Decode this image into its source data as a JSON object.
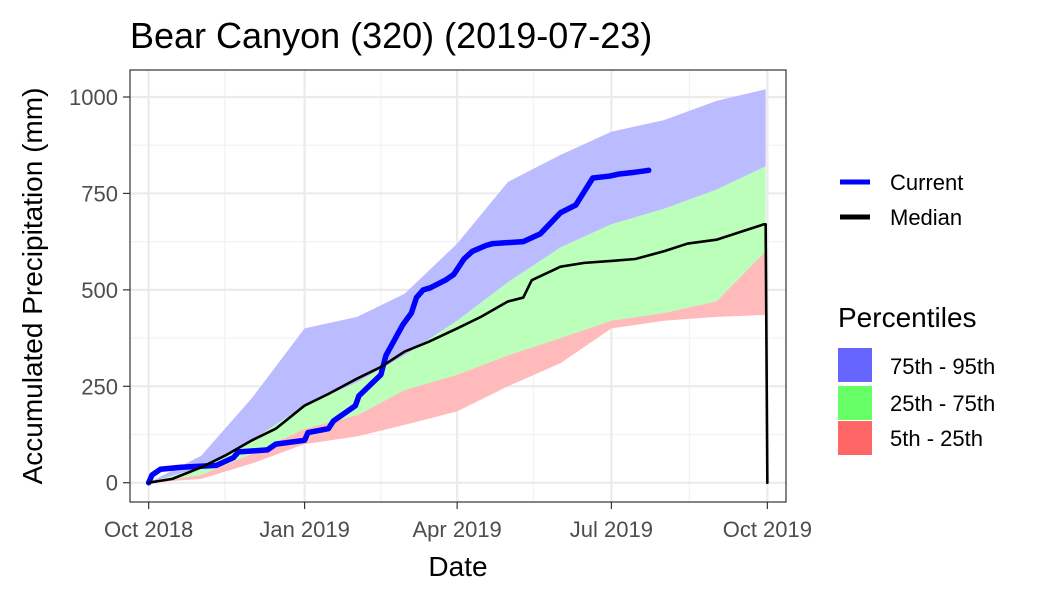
{
  "chart_data": {
    "type": "area",
    "title": "Bear Canyon (320) (2019-07-23)",
    "xlabel": "Date",
    "ylabel": "Accumulated Precipitation (mm)",
    "xlim": [
      "2018-09-20",
      "2019-10-12"
    ],
    "ylim": [
      -50,
      1070
    ],
    "grid": true,
    "x_ticks": [
      {
        "date": "2018-10-01",
        "label": "Oct 2018"
      },
      {
        "date": "2019-01-01",
        "label": "Jan 2019"
      },
      {
        "date": "2019-04-01",
        "label": "Apr 2019"
      },
      {
        "date": "2019-07-01",
        "label": "Jul 2019"
      },
      {
        "date": "2019-10-01",
        "label": "Oct 2019"
      }
    ],
    "y_ticks": [
      0,
      250,
      500,
      750,
      1000
    ],
    "x_minor_ticks": [
      "2018-11-15",
      "2019-02-15",
      "2019-05-16",
      "2019-08-16"
    ],
    "y_minor_ticks": [
      125,
      375,
      625,
      875
    ],
    "bands_dates": [
      "2018-10-01",
      "2018-11-01",
      "2018-12-01",
      "2019-01-01",
      "2019-02-01",
      "2019-03-01",
      "2019-04-01",
      "2019-05-01",
      "2019-06-01",
      "2019-07-01",
      "2019-08-01",
      "2019-09-01",
      "2019-09-30"
    ],
    "bands": [
      {
        "name": "75th - 95th",
        "color": "#6666ff",
        "fill": "#bbbbff",
        "lower": [
          0,
          40,
          110,
          200,
          260,
          330,
          420,
          520,
          610,
          670,
          710,
          760,
          820
        ],
        "upper": [
          0,
          70,
          220,
          400,
          430,
          490,
          620,
          780,
          850,
          910,
          940,
          990,
          1020
        ]
      },
      {
        "name": "25th - 75th",
        "color": "#66ff66",
        "fill": "#bbffbb",
        "lower": [
          0,
          20,
          75,
          140,
          175,
          240,
          280,
          330,
          375,
          420,
          440,
          470,
          600
        ],
        "upper": [
          0,
          40,
          110,
          200,
          260,
          330,
          420,
          520,
          610,
          670,
          710,
          760,
          820
        ]
      },
      {
        "name": "5th - 25th",
        "color": "#ff6666",
        "fill": "#ffbbbb",
        "lower": [
          0,
          10,
          50,
          100,
          120,
          150,
          185,
          250,
          310,
          400,
          420,
          430,
          435
        ],
        "upper": [
          0,
          20,
          75,
          140,
          175,
          240,
          280,
          330,
          375,
          420,
          440,
          470,
          600
        ]
      }
    ],
    "series": [
      {
        "name": "Current",
        "color": "#0000ff",
        "dates": [
          "2018-10-01",
          "2018-10-03",
          "2018-10-08",
          "2018-10-20",
          "2018-11-10",
          "2018-11-20",
          "2018-11-23",
          "2018-12-10",
          "2018-12-15",
          "2019-01-01",
          "2019-01-03",
          "2019-01-15",
          "2019-01-18",
          "2019-01-31",
          "2019-02-02",
          "2019-02-15",
          "2019-02-18",
          "2019-02-28",
          "2019-03-05",
          "2019-03-08",
          "2019-03-12",
          "2019-03-16",
          "2019-03-25",
          "2019-03-30",
          "2019-04-05",
          "2019-04-10",
          "2019-04-18",
          "2019-04-22",
          "2019-05-10",
          "2019-05-20",
          "2019-06-01",
          "2019-06-10",
          "2019-06-20",
          "2019-06-30",
          "2019-07-05",
          "2019-07-15",
          "2019-07-23"
        ],
        "values": [
          0,
          20,
          35,
          40,
          45,
          65,
          80,
          85,
          100,
          110,
          130,
          140,
          160,
          200,
          225,
          280,
          330,
          410,
          440,
          480,
          500,
          505,
          525,
          540,
          580,
          600,
          615,
          620,
          625,
          645,
          700,
          720,
          790,
          795,
          800,
          805,
          810
        ]
      },
      {
        "name": "Median",
        "color": "#000000",
        "dates": [
          "2018-10-01",
          "2018-10-15",
          "2018-11-01",
          "2018-11-15",
          "2018-12-01",
          "2018-12-15",
          "2019-01-01",
          "2019-01-15",
          "2019-02-01",
          "2019-02-15",
          "2019-03-01",
          "2019-03-15",
          "2019-04-01",
          "2019-04-15",
          "2019-05-01",
          "2019-05-10",
          "2019-05-15",
          "2019-06-01",
          "2019-06-15",
          "2019-07-01",
          "2019-07-15",
          "2019-08-01",
          "2019-08-15",
          "2019-09-01",
          "2019-09-15",
          "2019-09-29",
          "2019-09-30",
          "2019-10-01"
        ],
        "values": [
          0,
          10,
          40,
          70,
          110,
          140,
          200,
          230,
          270,
          300,
          340,
          365,
          400,
          430,
          470,
          480,
          525,
          560,
          570,
          575,
          580,
          600,
          620,
          630,
          650,
          670,
          670,
          0
        ]
      }
    ]
  }
}
